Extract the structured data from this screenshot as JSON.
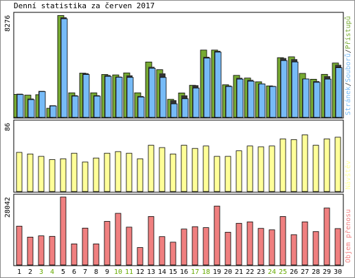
{
  "chart_data": {
    "type": "bar",
    "title": "Denní statistika za červen 2017",
    "days": [
      "1",
      "2",
      "3",
      "4",
      "5",
      "6",
      "7",
      "8",
      "9",
      "10",
      "11",
      "12",
      "13",
      "14",
      "15",
      "16",
      "17",
      "18",
      "19",
      "20",
      "21",
      "22",
      "23",
      "24",
      "25",
      "26",
      "27",
      "28",
      "29",
      "30"
    ],
    "weekend_days": [
      "3",
      "4",
      "10",
      "11",
      "17",
      "18",
      "24",
      "25"
    ],
    "colors": {
      "pristupu": "#77aa33",
      "souboru": "#333333",
      "stranek": "#77bbf7",
      "navstev": "#ffff99",
      "objem": "#f08080",
      "weekday_label": "#000000",
      "weekend_label": "#66aa00"
    },
    "panels": [
      {
        "id": "hits",
        "max_label": "8276",
        "ymax": 8276,
        "side_label": {
          "parts": [
            {
              "text": "Stránek",
              "color": "#77bbf7"
            },
            {
              "text": "/",
              "color": "#333333"
            },
            {
              "text": "Souborů",
              "color": "#77bbf7"
            },
            {
              "text": "/",
              "color": "#333333"
            },
            {
              "text": "Přístupů",
              "color": "#77aa33"
            }
          ]
        },
        "series": [
          {
            "name": "Přístupů",
            "values": [
              1860,
              1800,
              1840,
              740,
              8240,
              1990,
              3580,
              1990,
              3470,
              3440,
              3600,
              1990,
              4480,
              3860,
              1460,
              1980,
              2600,
              5450,
              5450,
              2640,
              3400,
              3180,
              2880,
              2550,
              4830,
              4900,
              3560,
              3090,
              3480,
              4400
            ]
          },
          {
            "name": "Souborů",
            "values": [
              1910,
              1520,
              2140,
              980,
              8100,
              1790,
              3570,
              1790,
              3420,
              3300,
              3400,
              1730,
              4090,
              3560,
              1390,
              1780,
              2600,
              4900,
              5380,
              2570,
              3200,
              3030,
              2730,
              2540,
              4800,
              4710,
              3130,
              2930,
              3330,
              4250
            ]
          },
          {
            "name": "Stránek",
            "values": [
              1850,
              1440,
              2090,
              930,
              7980,
              1720,
              3470,
              1720,
              3320,
              3250,
              3240,
              1650,
              3980,
              3230,
              1100,
              1510,
              2380,
              4800,
              5280,
              2500,
              3100,
              2930,
              2710,
              2500,
              4600,
              4490,
              3110,
              2840,
              3100,
              4020
            ]
          }
        ]
      },
      {
        "id": "visits",
        "max_label": "86",
        "ymax": 86,
        "side_label": {
          "parts": [
            {
              "text": "Návštěv",
              "color": "#ffff99"
            }
          ]
        },
        "series": [
          {
            "name": "Návštěv",
            "values": [
              49,
              47,
              44,
              40,
              41,
              48,
              37,
              42,
              48,
              50,
              48,
              41,
              58,
              55,
              47,
              58,
              54,
              57,
              44,
              44,
              51,
              57,
              56,
              57,
              66,
              65,
              71,
              58,
              66,
              68
            ]
          }
        ]
      },
      {
        "id": "volume",
        "max_label": "28042",
        "ymax": 28042,
        "side_label": {
          "parts": [
            {
              "text": "Objem přenosu",
              "color": "#f08080"
            }
          ]
        },
        "series": [
          {
            "name": "Objem přenosu",
            "values": [
              16000,
              11500,
              12000,
              11800,
              28042,
              8700,
              15200,
              8700,
              18000,
              21300,
              15600,
              7200,
              20000,
              11700,
              9400,
              14800,
              15800,
              15400,
              24300,
              13500,
              17200,
              17800,
              15100,
              14500,
              20000,
              12500,
              17800,
              13800,
              23500,
              15000
            ]
          }
        ]
      }
    ]
  }
}
